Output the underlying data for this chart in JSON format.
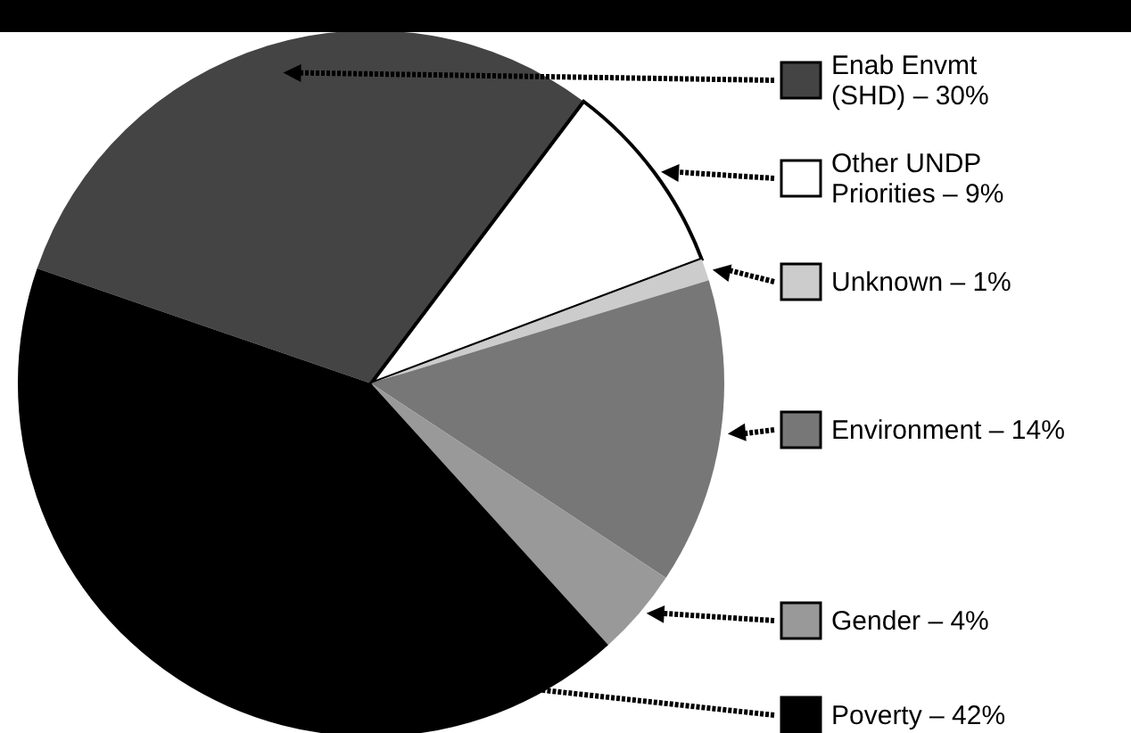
{
  "chart_data": {
    "type": "pie",
    "categories": [
      "Enab Envmt (SHD)",
      "Other UNDP Priorities",
      "Unknown",
      "Environment",
      "Gender",
      "Poverty"
    ],
    "values": [
      30,
      9,
      1,
      14,
      4,
      42
    ],
    "value_labels": [
      "30%",
      "9%",
      "1%",
      "14%",
      "4%",
      "42%"
    ],
    "colors": [
      "#444444",
      "#ffffff",
      "#cccccc",
      "#777777",
      "#999999",
      "#000000"
    ],
    "legend": "right"
  }
}
